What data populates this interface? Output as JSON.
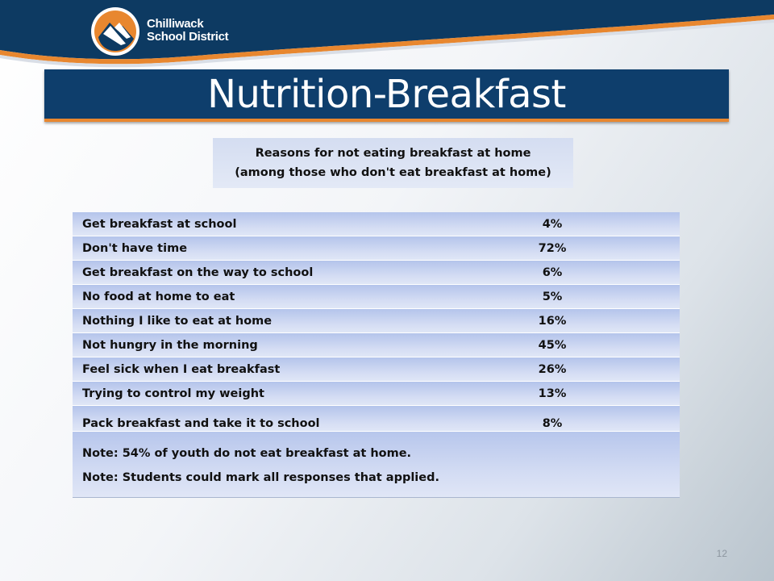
{
  "header": {
    "logo_line1": "Chilliwack",
    "logo_line2": "School District",
    "colors": {
      "navy": "#0e3e6c",
      "orange": "#e8872f",
      "header_blue": "#0d3a62"
    },
    "logo_icon": "mountain-swoosh-icon"
  },
  "title": "Nutrition-Breakfast",
  "subtitle": {
    "line1": "Reasons for not eating breakfast at home",
    "line2": "(among those who don't eat breakfast at home)"
  },
  "table": {
    "rows": [
      {
        "label": "Get breakfast at school",
        "value": "4%"
      },
      {
        "label": "Don't have time",
        "value": "72%"
      },
      {
        "label": "Get breakfast on the way to school",
        "value": "6%"
      },
      {
        "label": "No food at home to eat",
        "value": "5%"
      },
      {
        "label": "Nothing I like to eat at home",
        "value": "16%"
      },
      {
        "label": "Not hungry in the morning",
        "value": "45%"
      },
      {
        "label": "Feel sick when I eat breakfast",
        "value": "26%"
      },
      {
        "label": "Trying to control my weight",
        "value": "13%"
      },
      {
        "label": "Pack breakfast and take it to school",
        "value": "8%"
      }
    ],
    "note1": "Note: 54% of youth do not eat breakfast at home.",
    "note2": "Note: Students could mark all responses that applied."
  },
  "page_number": "12"
}
